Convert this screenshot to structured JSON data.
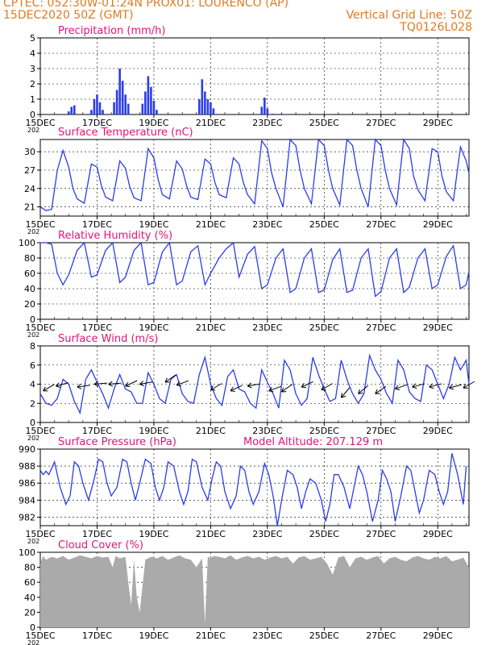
{
  "header": {
    "line1": "CPTEC:   052:30W-01:24N   PROX01: LOURENCO (AP)",
    "line2": "15DEC2020 50Z (GMT)",
    "grid_note": "Vertical Grid Line: 50Z",
    "code": "TQ0126L028"
  },
  "colors": {
    "header": "#e07a1f",
    "title": "#e0147a",
    "series": "#2b3de8",
    "cloud": "#aaaaaa",
    "axis": "#000000"
  },
  "x_axis": {
    "tick_labels": [
      "15DEC",
      "17DEC",
      "19DEC",
      "21DEC",
      "23DEC",
      "25DEC",
      "27DEC",
      "29DEC"
    ],
    "tick_days": [
      15,
      17,
      19,
      21,
      23,
      25,
      27,
      29
    ],
    "year_fragment": "202",
    "range_days": [
      15,
      30.1
    ]
  },
  "chart_data": [
    {
      "type": "bar",
      "title": "Precipitation (mm/h)",
      "ylim": [
        0,
        5
      ],
      "yticks": [
        "0",
        "1",
        "2",
        "3",
        "4",
        "5"
      ],
      "x": [
        16.0,
        16.1,
        16.2,
        16.8,
        16.9,
        17.0,
        17.1,
        17.2,
        17.6,
        17.7,
        17.8,
        17.9,
        18.0,
        18.1,
        18.6,
        18.7,
        18.8,
        18.9,
        19.0,
        19.1,
        20.6,
        20.7,
        20.8,
        20.9,
        21.0,
        21.1,
        22.8,
        22.9,
        23.0,
        23.2,
        23.5,
        24.0,
        24.5,
        25.0,
        25.5,
        26.0,
        26.5,
        27.0,
        27.5,
        28.0,
        28.5,
        29.0,
        29.5
      ],
      "values": [
        0.2,
        0.5,
        0.6,
        0.3,
        1.0,
        1.3,
        0.8,
        0.3,
        0.8,
        1.6,
        3.0,
        2.2,
        1.3,
        0.7,
        0.7,
        1.5,
        2.5,
        1.8,
        0.9,
        0.3,
        1.0,
        2.3,
        1.5,
        1.0,
        0.8,
        0.4,
        0.5,
        1.1,
        0.4,
        0.05,
        0.05,
        0.05,
        0.05,
        0.05,
        0.05,
        0.05,
        0.05,
        0.05,
        0.05,
        0.05,
        0.05,
        0.05,
        0.05
      ]
    },
    {
      "type": "line",
      "title": "Surface Temperature (nC)",
      "ylim": [
        19.5,
        32
      ],
      "yticks": [
        "21",
        "24",
        "27",
        "30"
      ],
      "x": [
        15.0,
        15.2,
        15.4,
        15.6,
        15.8,
        16.0,
        16.15,
        16.3,
        16.55,
        16.8,
        17.0,
        17.15,
        17.3,
        17.55,
        17.8,
        18.0,
        18.15,
        18.3,
        18.55,
        18.8,
        19.0,
        19.15,
        19.3,
        19.55,
        19.8,
        20.0,
        20.15,
        20.3,
        20.55,
        20.8,
        21.0,
        21.15,
        21.3,
        21.55,
        21.8,
        22.0,
        22.15,
        22.3,
        22.55,
        22.8,
        23.0,
        23.15,
        23.3,
        23.55,
        23.8,
        24.0,
        24.15,
        24.3,
        24.55,
        24.8,
        25.0,
        25.15,
        25.3,
        25.55,
        25.8,
        26.0,
        26.15,
        26.3,
        26.55,
        26.8,
        27.0,
        27.15,
        27.3,
        27.55,
        27.8,
        28.0,
        28.15,
        28.3,
        28.55,
        28.8,
        29.0,
        29.15,
        29.3,
        29.55,
        29.8,
        30.0,
        30.1
      ],
      "values": [
        21.0,
        20.4,
        20.6,
        27.0,
        30.2,
        27.5,
        24.0,
        22.3,
        21.6,
        28.0,
        27.5,
        24.5,
        22.6,
        22.0,
        28.5,
        27.3,
        24.3,
        22.5,
        22.0,
        30.5,
        29.0,
        25.5,
        23.0,
        22.3,
        28.5,
        27.2,
        24.5,
        22.6,
        22.2,
        28.8,
        28.0,
        25.0,
        23.0,
        22.5,
        29.0,
        28.0,
        25.0,
        23.0,
        21.5,
        31.8,
        30.5,
        26.5,
        24.0,
        21.0,
        32.0,
        31.0,
        27.0,
        24.0,
        21.5,
        32.0,
        31.0,
        27.0,
        24.0,
        21.3,
        32.0,
        31.0,
        27.0,
        24.0,
        21.0,
        32.0,
        31.0,
        27.0,
        24.0,
        21.3,
        32.0,
        30.5,
        26.0,
        23.8,
        22.0,
        30.5,
        30.0,
        26.0,
        23.5,
        22.0,
        30.8,
        28.5,
        26.5
      ]
    },
    {
      "type": "line",
      "title": "Relative Humidity (%)",
      "ylim": [
        0,
        100
      ],
      "yticks": [
        "0",
        "20",
        "40",
        "60",
        "80",
        "100"
      ],
      "x": [
        15.0,
        15.2,
        15.4,
        15.6,
        15.8,
        16.0,
        16.3,
        16.55,
        16.8,
        17.0,
        17.3,
        17.55,
        17.8,
        18.0,
        18.3,
        18.55,
        18.8,
        19.0,
        19.3,
        19.55,
        19.8,
        20.0,
        20.3,
        20.55,
        20.8,
        21.0,
        21.3,
        21.55,
        21.8,
        22.0,
        22.3,
        22.55,
        22.8,
        23.0,
        23.3,
        23.55,
        23.8,
        24.0,
        24.3,
        24.55,
        24.8,
        25.0,
        25.3,
        25.55,
        25.8,
        26.0,
        26.3,
        26.55,
        26.8,
        27.0,
        27.3,
        27.55,
        27.8,
        28.0,
        28.3,
        28.55,
        28.8,
        29.0,
        29.3,
        29.55,
        29.8,
        30.0,
        30.1
      ],
      "values": [
        100,
        100,
        98,
        60,
        45,
        58,
        90,
        100,
        55,
        58,
        90,
        100,
        48,
        55,
        90,
        100,
        45,
        48,
        88,
        100,
        45,
        50,
        88,
        96,
        45,
        60,
        80,
        92,
        100,
        55,
        85,
        95,
        40,
        45,
        80,
        92,
        35,
        40,
        80,
        92,
        35,
        38,
        78,
        92,
        35,
        38,
        80,
        92,
        30,
        36,
        80,
        92,
        35,
        42,
        80,
        92,
        40,
        45,
        82,
        96,
        40,
        45,
        62
      ]
    },
    {
      "type": "line",
      "title": "Surface Wind (m/s)",
      "ylim": [
        0,
        8
      ],
      "yticks": [
        "0",
        "2",
        "4",
        "6",
        "8"
      ],
      "x": [
        15.0,
        15.2,
        15.4,
        15.6,
        15.8,
        16.0,
        16.2,
        16.4,
        16.6,
        16.8,
        17.0,
        17.2,
        17.4,
        17.6,
        17.8,
        18.0,
        18.2,
        18.4,
        18.6,
        18.8,
        19.0,
        19.2,
        19.4,
        19.6,
        19.8,
        20.0,
        20.2,
        20.4,
        20.6,
        20.8,
        21.0,
        21.2,
        21.4,
        21.6,
        21.8,
        22.0,
        22.2,
        22.4,
        22.6,
        22.8,
        23.0,
        23.2,
        23.4,
        23.6,
        23.8,
        24.0,
        24.2,
        24.4,
        24.6,
        24.8,
        25.0,
        25.2,
        25.4,
        25.6,
        25.8,
        26.0,
        26.2,
        26.4,
        26.6,
        26.8,
        27.0,
        27.2,
        27.4,
        27.6,
        27.8,
        28.0,
        28.2,
        28.4,
        28.6,
        28.8,
        29.0,
        29.2,
        29.4,
        29.6,
        29.8,
        30.0,
        30.1
      ],
      "values": [
        3.0,
        2.0,
        1.8,
        2.5,
        4.5,
        4.0,
        2.2,
        1.0,
        4.5,
        5.5,
        4.2,
        3.0,
        1.5,
        3.5,
        5.0,
        3.5,
        3.2,
        2.0,
        2.0,
        5.2,
        4.0,
        2.5,
        2.0,
        4.5,
        5.0,
        3.0,
        2.2,
        2.0,
        5.0,
        6.8,
        4.0,
        2.5,
        1.8,
        4.8,
        5.5,
        3.5,
        3.2,
        2.0,
        1.5,
        5.5,
        4.2,
        3.0,
        1.5,
        6.5,
        5.5,
        3.0,
        1.8,
        2.5,
        6.8,
        5.0,
        3.5,
        2.2,
        2.5,
        6.5,
        4.5,
        3.0,
        2.0,
        3.0,
        7.0,
        5.5,
        4.5,
        3.0,
        2.0,
        6.5,
        5.5,
        3.2,
        2.5,
        2.2,
        6.0,
        5.5,
        4.0,
        2.5,
        4.0,
        6.8,
        5.5,
        6.5,
        4.0
      ],
      "wind_arrows": {
        "x": [
          15.1,
          15.55,
          16.3,
          16.9,
          17.4,
          18.0,
          18.5,
          19.4,
          19.8,
          21.0,
          21.7,
          22.3,
          23.05,
          23.5,
          24.2,
          24.9,
          25.6,
          26.2,
          26.8,
          27.5,
          28.1,
          28.7,
          29.4,
          29.9
        ],
        "speed": [
          3.3,
          3.8,
          3.7,
          4.0,
          4.0,
          3.8,
          4.0,
          4.2,
          3.9,
          3.4,
          3.3,
          3.8,
          3.3,
          3.2,
          3.7,
          3.4,
          2.6,
          3.0,
          3.0,
          3.5,
          3.7,
          3.7,
          3.6,
          3.6
        ],
        "angle_deg": [
          30,
          15,
          8,
          5,
          5,
          25,
          10,
          35,
          20,
          30,
          25,
          10,
          20,
          35,
          25,
          30,
          50,
          40,
          35,
          20,
          15,
          15,
          15,
          30
        ]
      }
    },
    {
      "type": "line",
      "title": "Surface Pressure (hPa)",
      "annotation": "Model Altitude: 207.129 m",
      "ylim": [
        981,
        990
      ],
      "yticks": [
        "982",
        "984",
        "986",
        "988",
        "990"
      ],
      "x": [
        15.0,
        15.1,
        15.2,
        15.3,
        15.5,
        15.7,
        15.9,
        16.05,
        16.2,
        16.35,
        16.5,
        16.7,
        16.9,
        17.05,
        17.2,
        17.35,
        17.5,
        17.7,
        17.9,
        18.05,
        18.2,
        18.35,
        18.5,
        18.7,
        18.9,
        19.05,
        19.2,
        19.35,
        19.5,
        19.7,
        19.9,
        20.05,
        20.2,
        20.35,
        20.5,
        20.7,
        20.9,
        21.05,
        21.2,
        21.35,
        21.5,
        21.7,
        21.9,
        22.05,
        22.2,
        22.35,
        22.5,
        22.7,
        22.9,
        23.05,
        23.2,
        23.35,
        23.5,
        23.7,
        23.9,
        24.05,
        24.2,
        24.35,
        24.5,
        24.7,
        24.9,
        25.05,
        25.2,
        25.35,
        25.5,
        25.7,
        25.9,
        26.05,
        26.2,
        26.35,
        26.5,
        26.7,
        26.9,
        27.05,
        27.2,
        27.35,
        27.5,
        27.7,
        27.9,
        28.05,
        28.2,
        28.35,
        28.5,
        28.7,
        28.9,
        29.05,
        29.2,
        29.35,
        29.5,
        29.7,
        29.9,
        30.0
      ],
      "values": [
        987.5,
        987.0,
        987.4,
        987.0,
        988.5,
        985.5,
        983.5,
        984.5,
        988.5,
        988.0,
        986.0,
        984.0,
        986.5,
        988.8,
        988.5,
        986.0,
        984.5,
        985.5,
        988.8,
        988.5,
        986.0,
        984.0,
        986.0,
        988.8,
        988.3,
        985.5,
        984.0,
        985.5,
        988.5,
        988.0,
        985.0,
        983.5,
        985.0,
        988.8,
        988.5,
        985.5,
        984.0,
        986.5,
        988.5,
        988.0,
        985.0,
        983.0,
        984.5,
        988.0,
        987.5,
        985.0,
        983.5,
        985.0,
        988.3,
        987.0,
        984.5,
        981.0,
        984.0,
        987.5,
        987.0,
        985.5,
        983.0,
        985.0,
        986.5,
        986.0,
        984.0,
        981.5,
        983.5,
        987.0,
        987.0,
        985.5,
        983.0,
        985.5,
        988.0,
        987.0,
        985.0,
        981.5,
        984.0,
        987.5,
        986.5,
        985.0,
        981.5,
        984.5,
        988.0,
        987.5,
        985.0,
        982.5,
        984.0,
        987.5,
        987.0,
        985.0,
        983.5,
        985.0,
        989.5,
        987.0,
        983.5,
        988.0
      ]
    },
    {
      "type": "area",
      "title": "Cloud Cover (%)",
      "ylim": [
        0,
        100
      ],
      "yticks": [
        "0",
        "20",
        "40",
        "60",
        "80",
        "100"
      ],
      "x": [
        15.0,
        15.1,
        15.2,
        15.4,
        15.6,
        15.8,
        16.0,
        16.2,
        16.4,
        16.6,
        16.8,
        17.0,
        17.2,
        17.4,
        17.55,
        17.65,
        17.8,
        18.0,
        18.1,
        18.2,
        18.3,
        18.4,
        18.5,
        18.7,
        18.9,
        19.1,
        19.3,
        19.5,
        19.7,
        19.9,
        20.1,
        20.3,
        20.5,
        20.7,
        20.8,
        20.9,
        21.0,
        21.1,
        21.3,
        21.5,
        21.7,
        21.9,
        22.1,
        22.3,
        22.5,
        22.7,
        22.9,
        23.1,
        23.3,
        23.5,
        23.7,
        23.9,
        24.1,
        24.3,
        24.5,
        24.7,
        24.9,
        25.1,
        25.3,
        25.5,
        25.7,
        25.9,
        26.1,
        26.3,
        26.5,
        26.7,
        26.9,
        27.1,
        27.3,
        27.5,
        27.7,
        27.9,
        28.1,
        28.3,
        28.5,
        28.7,
        28.9,
        29.1,
        29.3,
        29.5,
        29.7,
        29.9,
        30.1
      ],
      "values": [
        85,
        95,
        90,
        94,
        92,
        95,
        90,
        93,
        96,
        94,
        92,
        95,
        93,
        94,
        80,
        95,
        92,
        94,
        60,
        30,
        90,
        40,
        20,
        90,
        94,
        92,
        95,
        90,
        93,
        96,
        92,
        90,
        80,
        92,
        5,
        94,
        92,
        95,
        94,
        92,
        96,
        90,
        93,
        95,
        92,
        94,
        90,
        93,
        95,
        92,
        94,
        85,
        93,
        95,
        90,
        92,
        94,
        85,
        70,
        93,
        95,
        80,
        92,
        94,
        90,
        93,
        95,
        85,
        92,
        94,
        90,
        88,
        93,
        95,
        92,
        90,
        94,
        92,
        95,
        88,
        90,
        93,
        80
      ]
    }
  ]
}
